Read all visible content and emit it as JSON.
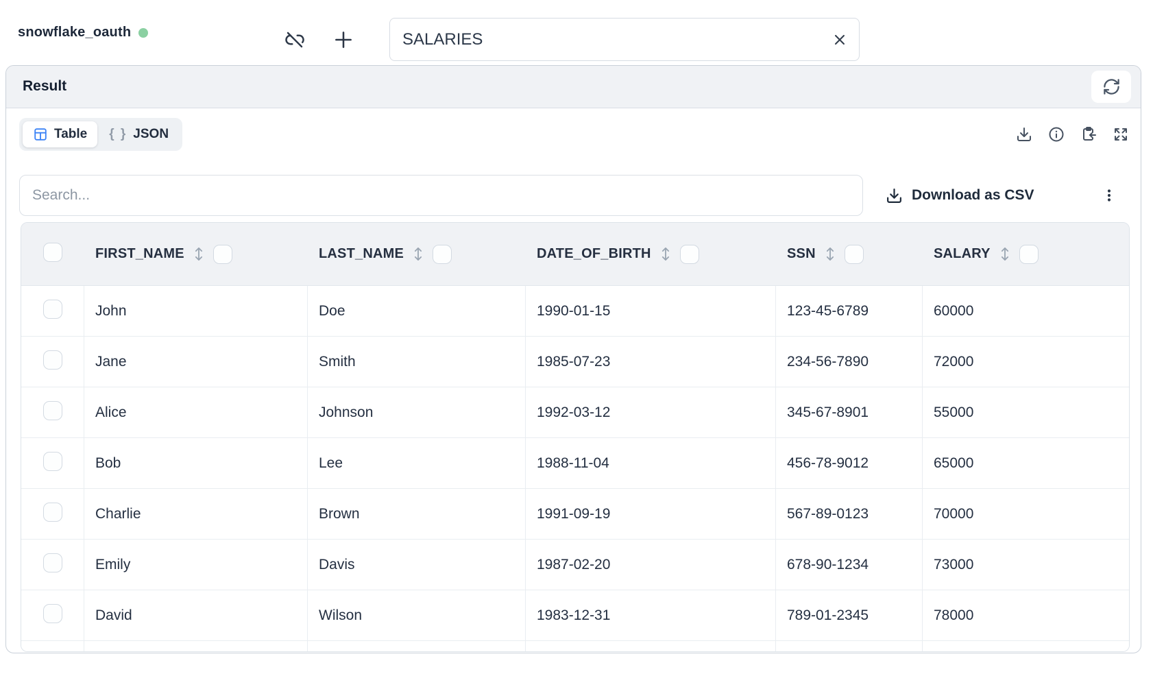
{
  "topbar": {
    "connection_name": "snowflake_oauth",
    "table_name_value": "SALARIES"
  },
  "result_panel": {
    "title": "Result"
  },
  "tabs": {
    "table_label": "Table",
    "json_label": "JSON",
    "json_icon_glyph": "{ }"
  },
  "toolbar": {
    "search_placeholder": "Search...",
    "download_csv_label": "Download as CSV"
  },
  "table": {
    "columns": [
      "FIRST_NAME",
      "LAST_NAME",
      "DATE_OF_BIRTH",
      "SSN",
      "SALARY"
    ],
    "rows": [
      [
        "John",
        "Doe",
        "1990-01-15",
        "123-45-6789",
        "60000"
      ],
      [
        "Jane",
        "Smith",
        "1985-07-23",
        "234-56-7890",
        "72000"
      ],
      [
        "Alice",
        "Johnson",
        "1992-03-12",
        "345-67-8901",
        "55000"
      ],
      [
        "Bob",
        "Lee",
        "1988-11-04",
        "456-78-9012",
        "65000"
      ],
      [
        "Charlie",
        "Brown",
        "1991-09-19",
        "567-89-0123",
        "70000"
      ],
      [
        "Emily",
        "Davis",
        "1987-02-20",
        "678-90-1234",
        "73000"
      ],
      [
        "David",
        "Wilson",
        "1983-12-31",
        "789-01-2345",
        "78000"
      ]
    ]
  },
  "colors": {
    "accent_blue": "#3b82f6",
    "status_green": "#8bd0a2"
  }
}
